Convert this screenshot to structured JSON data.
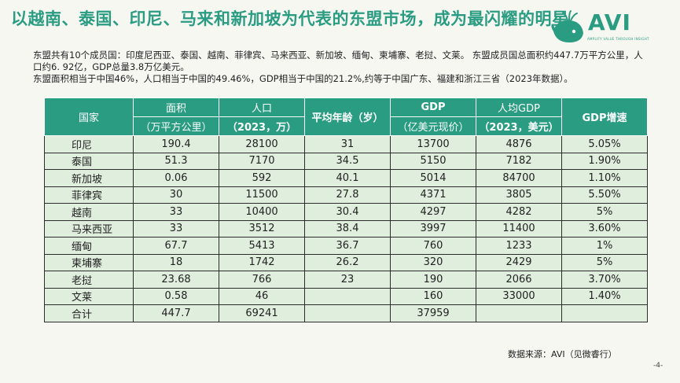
{
  "title": "以越南、泰国、印尼、马来和新加坡为代表的东盟市场，成为最闪耀的明星",
  "logo": {
    "text": "AVI",
    "subtitle": "AMPLIFY VALUE THROUGH INSIGHT"
  },
  "intro": {
    "line1": "东盟共有10个成员国：印度尼西亚、泰国、越南、菲律宾、马来西亚、新加坡、缅甸、柬埔寨、老挝、文莱。 东盟成员国总面积约447.7万平方公里，人口约6. 92亿，GDP总量3.8万亿美元。",
    "line2": "东盟面积相当于中国46%，人口相当于中国的49.46%，GDP相当于中国的21.2%,约等于中国广东、福建和浙江三省（2023年数据）。"
  },
  "table": {
    "header": {
      "country": "国家",
      "area_1": "面积",
      "area_2": "（万平方公里）",
      "pop_1": "人口",
      "pop_2": "（2023，万）",
      "age": "平均年龄（岁）",
      "gdp_1": "GDP",
      "gdp_2": "（亿美元现价）",
      "pc_1": "人均GDP",
      "pc_2": "（2023，美元）",
      "growth": "GDP增速"
    },
    "rows": [
      {
        "country": "印尼",
        "area": "190.4",
        "pop": "28100",
        "age": "31",
        "gdp": "13700",
        "pc": "4876",
        "growth": "5.05%"
      },
      {
        "country": "泰国",
        "area": "51.3",
        "pop": "7170",
        "age": "34.5",
        "gdp": "5150",
        "pc": "7182",
        "growth": "1.90%"
      },
      {
        "country": "新加坡",
        "area": "0.06",
        "pop": "592",
        "age": "40.1",
        "gdp": "5014",
        "pc": "84700",
        "growth": "1.10%"
      },
      {
        "country": "菲律宾",
        "area": "30",
        "pop": "11500",
        "age": "27.8",
        "gdp": "4371",
        "pc": "3805",
        "growth": "5.50%"
      },
      {
        "country": "越南",
        "area": "33",
        "pop": "10400",
        "age": "30.4",
        "gdp": "4297",
        "pc": "4282",
        "growth": "5%"
      },
      {
        "country": "马来西亚",
        "area": "33",
        "pop": "3512",
        "age": "38.4",
        "gdp": "3997",
        "pc": "11400",
        "growth": "3.60%"
      },
      {
        "country": "缅甸",
        "area": "67.7",
        "pop": "5413",
        "age": "36.7",
        "gdp": "760",
        "pc": "1233",
        "growth": "1%"
      },
      {
        "country": "柬埔寨",
        "area": "18",
        "pop": "1742",
        "age": "26.2",
        "gdp": "320",
        "pc": "2429",
        "growth": "5%"
      },
      {
        "country": "老挝",
        "area": "23.68",
        "pop": "766",
        "age": "23",
        "gdp": "190",
        "pc": "2066",
        "growth": "3.70%"
      },
      {
        "country": "文莱",
        "area": "0.58",
        "pop": "46",
        "age": "",
        "gdp": "160",
        "pc": "33000",
        "growth": "1.40%"
      },
      {
        "country": "合计",
        "area": "447.7",
        "pop": "69241",
        "age": "",
        "gdp": "37959",
        "pc": "",
        "growth": ""
      }
    ]
  },
  "source": "数据来源：AVI（见微睿行）",
  "page_number": "-4-",
  "colors": {
    "accent": "#2a9c82",
    "cell_bg": "#dfeedd"
  }
}
